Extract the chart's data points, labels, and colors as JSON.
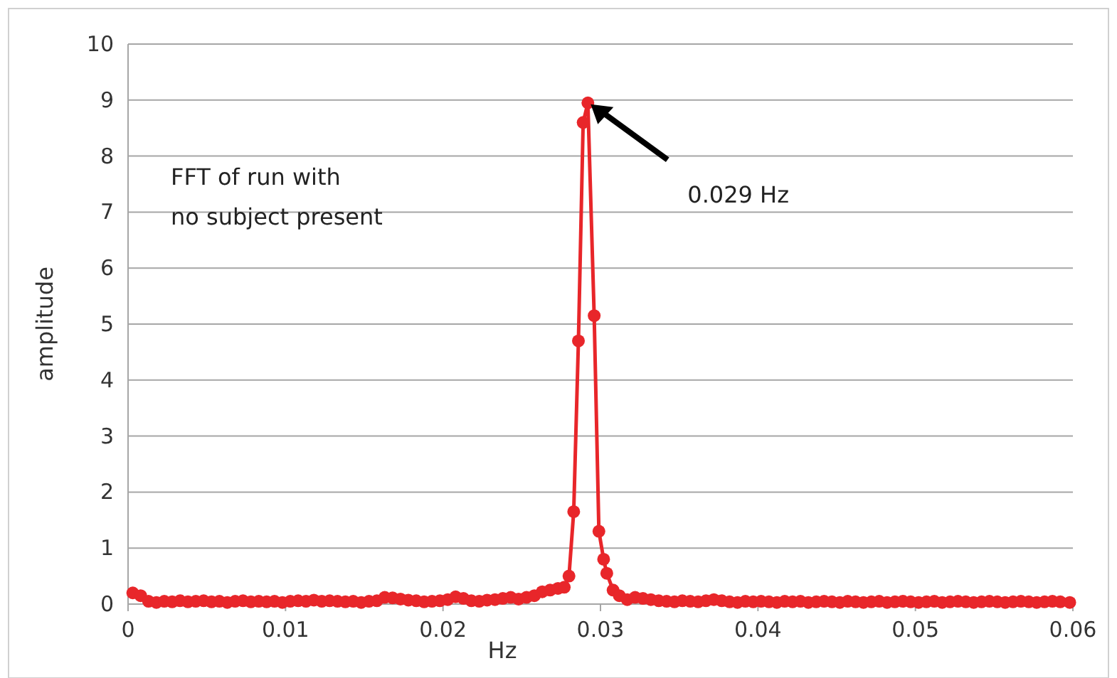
{
  "chart_data": {
    "type": "line",
    "xlabel": "Hz",
    "ylabel": "amplitude",
    "x": [
      0.0003,
      0.0008,
      0.0013,
      0.0018,
      0.0023,
      0.0028,
      0.0033,
      0.0038,
      0.0043,
      0.0048,
      0.0053,
      0.0058,
      0.0063,
      0.0068,
      0.0073,
      0.0078,
      0.0083,
      0.0088,
      0.0093,
      0.0098,
      0.0103,
      0.0108,
      0.0113,
      0.0118,
      0.0123,
      0.0128,
      0.0133,
      0.0138,
      0.0143,
      0.0148,
      0.0153,
      0.0158,
      0.0163,
      0.0168,
      0.0173,
      0.0178,
      0.0183,
      0.0188,
      0.0193,
      0.0198,
      0.0203,
      0.0208,
      0.0213,
      0.0218,
      0.0223,
      0.0228,
      0.0233,
      0.0238,
      0.0243,
      0.0248,
      0.0253,
      0.0258,
      0.0263,
      0.0268,
      0.0273,
      0.0277,
      0.028,
      0.0283,
      0.0286,
      0.0289,
      0.0292,
      0.0296,
      0.0299,
      0.0302,
      0.0304,
      0.0308,
      0.0312,
      0.0317,
      0.0322,
      0.0327,
      0.0332,
      0.0337,
      0.0342,
      0.0347,
      0.0352,
      0.0357,
      0.0362,
      0.0367,
      0.0372,
      0.0377,
      0.0382,
      0.0387,
      0.0392,
      0.0397,
      0.0402,
      0.0407,
      0.0412,
      0.0417,
      0.0422,
      0.0427,
      0.0432,
      0.0437,
      0.0442,
      0.0447,
      0.0452,
      0.0457,
      0.0462,
      0.0467,
      0.0472,
      0.0477,
      0.0482,
      0.0487,
      0.0492,
      0.0497,
      0.0502,
      0.0507,
      0.0512,
      0.0517,
      0.0522,
      0.0527,
      0.0532,
      0.0537,
      0.0542,
      0.0547,
      0.0552,
      0.0557,
      0.0562,
      0.0567,
      0.0572,
      0.0577,
      0.0582,
      0.0587,
      0.0592,
      0.0598
    ],
    "series": [
      {
        "color": "#e8262a",
        "values": [
          0.2,
          0.15,
          0.05,
          0.03,
          0.05,
          0.04,
          0.06,
          0.04,
          0.05,
          0.06,
          0.04,
          0.05,
          0.03,
          0.05,
          0.06,
          0.04,
          0.05,
          0.04,
          0.05,
          0.03,
          0.05,
          0.06,
          0.05,
          0.07,
          0.05,
          0.06,
          0.05,
          0.04,
          0.05,
          0.03,
          0.05,
          0.06,
          0.12,
          0.11,
          0.09,
          0.07,
          0.06,
          0.04,
          0.05,
          0.06,
          0.08,
          0.13,
          0.1,
          0.06,
          0.05,
          0.07,
          0.08,
          0.1,
          0.12,
          0.09,
          0.12,
          0.15,
          0.22,
          0.25,
          0.28,
          0.3,
          0.5,
          1.65,
          4.7,
          8.6,
          8.95,
          5.15,
          1.3,
          0.8,
          0.55,
          0.25,
          0.15,
          0.08,
          0.12,
          0.1,
          0.08,
          0.06,
          0.05,
          0.04,
          0.06,
          0.05,
          0.04,
          0.06,
          0.08,
          0.06,
          0.04,
          0.03,
          0.05,
          0.04,
          0.05,
          0.04,
          0.03,
          0.05,
          0.04,
          0.05,
          0.03,
          0.04,
          0.05,
          0.04,
          0.03,
          0.05,
          0.04,
          0.03,
          0.04,
          0.05,
          0.03,
          0.04,
          0.05,
          0.04,
          0.03,
          0.04,
          0.05,
          0.03,
          0.04,
          0.05,
          0.04,
          0.03,
          0.04,
          0.05,
          0.04,
          0.03,
          0.04,
          0.05,
          0.04,
          0.03,
          0.04,
          0.05,
          0.04,
          0.03
        ]
      }
    ],
    "xlim": [
      0,
      0.06
    ],
    "xticks": [
      0,
      0.01,
      0.02,
      0.03,
      0.04,
      0.05,
      0.06
    ],
    "ylim": [
      0,
      10
    ],
    "yticks": [
      0,
      1,
      2,
      3,
      4,
      5,
      6,
      7,
      8,
      9,
      10
    ],
    "grid": "y",
    "marker": "circle",
    "line_style": "solid",
    "annotations": [
      "FFT of run with\nno subject present",
      "0.029 Hz"
    ]
  }
}
